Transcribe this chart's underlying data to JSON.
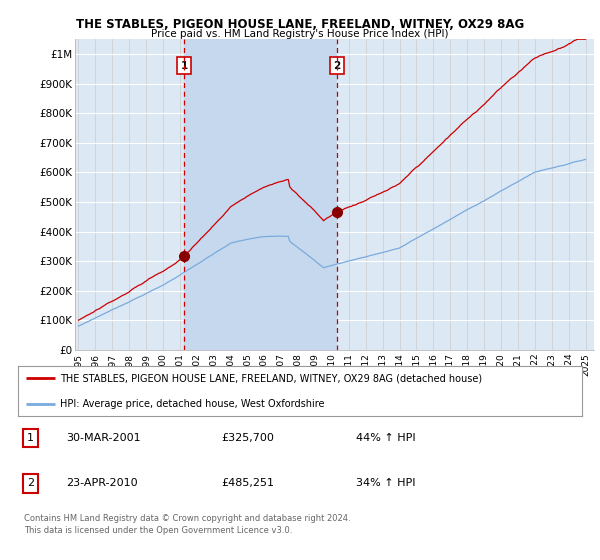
{
  "title": "THE STABLES, PIGEON HOUSE LANE, FREELAND, WITNEY, OX29 8AG",
  "subtitle": "Price paid vs. HM Land Registry's House Price Index (HPI)",
  "red_label": "THE STABLES, PIGEON HOUSE LANE, FREELAND, WITNEY, OX29 8AG (detached house)",
  "blue_label": "HPI: Average price, detached house, West Oxfordshire",
  "sale1_date": "30-MAR-2001",
  "sale1_price": "£325,700",
  "sale1_hpi": "44% ↑ HPI",
  "sale2_date": "23-APR-2010",
  "sale2_price": "£485,251",
  "sale2_hpi": "34% ↑ HPI",
  "footnote1": "Contains HM Land Registry data © Crown copyright and database right 2024.",
  "footnote2": "This data is licensed under the Open Government Licence v3.0.",
  "sale1_year": 2001.25,
  "sale1_value": 325700,
  "sale2_year": 2010.3,
  "sale2_value": 485251,
  "background_color": "#ffffff",
  "plot_bg_color": "#dce9f5",
  "shade_color": "#c5d8ee",
  "grid_color": "#cccccc",
  "red_color": "#cc0000",
  "blue_color": "#7aaadd",
  "vline_color": "#cc0000",
  "ylim": [
    0,
    1050000
  ],
  "xlim_start": 1994.8,
  "xlim_end": 2025.5
}
